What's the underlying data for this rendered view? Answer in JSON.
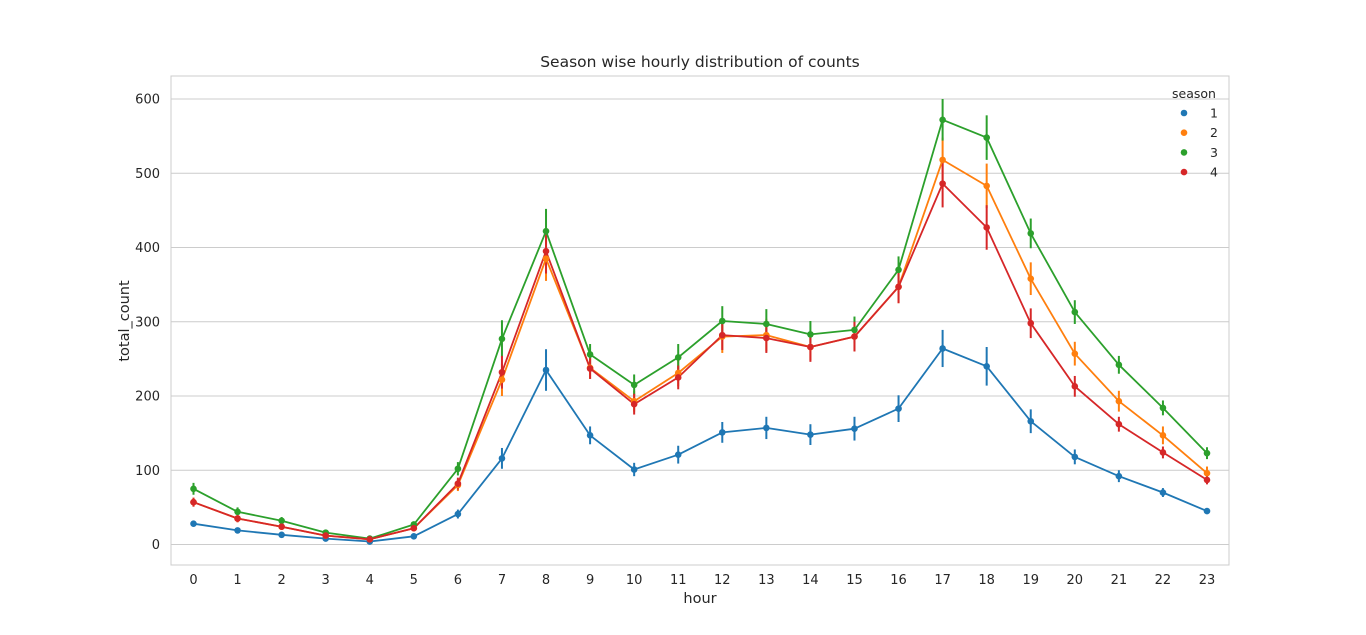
{
  "chart_data": {
    "type": "line",
    "title": "Season wise hourly distribution of counts",
    "xlabel": "hour",
    "ylabel": "total_count",
    "categories": [
      "0",
      "1",
      "2",
      "3",
      "4",
      "5",
      "6",
      "7",
      "8",
      "9",
      "10",
      "11",
      "12",
      "13",
      "14",
      "15",
      "16",
      "17",
      "18",
      "19",
      "20",
      "21",
      "22",
      "23"
    ],
    "ylim": [
      -30,
      630
    ],
    "yticks": [
      0,
      100,
      200,
      300,
      400,
      500,
      600
    ],
    "grid": "horizontal",
    "legend": {
      "title": "season",
      "placement": "top-right"
    },
    "series": [
      {
        "name": "1",
        "color": "#1f77b4",
        "values": [
          28,
          19,
          13,
          8,
          4,
          11,
          41,
          116,
          235,
          147,
          101,
          121,
          151,
          157,
          148,
          156,
          183,
          264,
          240,
          166,
          118,
          92,
          70,
          45
        ],
        "err": [
          3,
          3,
          2,
          2,
          1,
          3,
          6,
          14,
          28,
          12,
          9,
          12,
          14,
          15,
          14,
          16,
          18,
          25,
          26,
          16,
          10,
          8,
          6,
          4
        ]
      },
      {
        "name": "2",
        "color": "#ff7f0e",
        "values": [
          57,
          35,
          24,
          12,
          7,
          22,
          80,
          222,
          385,
          238,
          193,
          231,
          280,
          282,
          266,
          280,
          347,
          518,
          483,
          358,
          257,
          193,
          147,
          96
        ],
        "err": [
          6,
          5,
          4,
          3,
          2,
          4,
          8,
          22,
          30,
          15,
          14,
          18,
          22,
          22,
          18,
          20,
          22,
          30,
          30,
          22,
          16,
          14,
          12,
          9
        ]
      },
      {
        "name": "3",
        "color": "#2ca02c",
        "values": [
          75,
          44,
          32,
          16,
          8,
          27,
          102,
          277,
          422,
          256,
          215,
          252,
          301,
          297,
          283,
          289,
          370,
          572,
          548,
          419,
          313,
          242,
          184,
          123
        ],
        "err": [
          8,
          6,
          5,
          3,
          2,
          4,
          9,
          25,
          30,
          14,
          14,
          18,
          20,
          20,
          18,
          18,
          18,
          28,
          30,
          20,
          16,
          12,
          10,
          8
        ]
      },
      {
        "name": "4",
        "color": "#d62728",
        "values": [
          57,
          35,
          24,
          12,
          7,
          22,
          82,
          232,
          395,
          237,
          189,
          225,
          282,
          278,
          266,
          280,
          347,
          486,
          427,
          298,
          213,
          162,
          124,
          87
        ],
        "err": [
          6,
          5,
          4,
          3,
          2,
          4,
          8,
          22,
          30,
          14,
          14,
          16,
          20,
          20,
          20,
          20,
          22,
          32,
          30,
          20,
          14,
          10,
          8,
          6
        ]
      }
    ]
  }
}
